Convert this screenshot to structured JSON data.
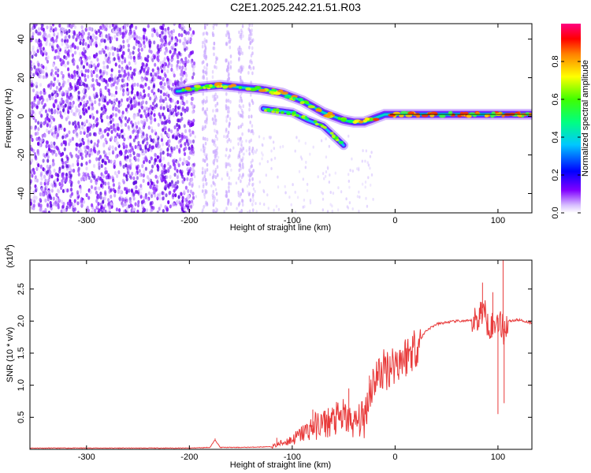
{
  "title": "C2E1.2025.242.21.51.R03",
  "chart_data": [
    {
      "type": "heatmap",
      "xlabel": "Height of straight line (km)",
      "ylabel": "Frequency (Hz)",
      "xlim": [
        -355,
        133
      ],
      "ylim": [
        -50,
        48
      ],
      "xticks": [
        -300,
        -200,
        -100,
        0,
        100
      ],
      "yticks": [
        -40,
        -20,
        0,
        20,
        40
      ],
      "colorbar": {
        "label": "Normalized spectral amplitude",
        "range": [
          0.0,
          1.0
        ],
        "ticks": [
          0.0,
          0.2,
          0.4,
          0.6,
          0.8
        ],
        "colormap": [
          "#ffffff",
          "#8000ff",
          "#0000ff",
          "#00ffff",
          "#00ff00",
          "#ffff00",
          "#ff8000",
          "#ff0000",
          "#ff00ff"
        ]
      },
      "ridge": {
        "x": [
          -210,
          -190,
          -170,
          -150,
          -130,
          -120,
          -110,
          -100,
          -90,
          -80,
          -70,
          -60,
          -50,
          -40,
          -30,
          -20,
          -10,
          0,
          20,
          40,
          60,
          80,
          100,
          120,
          133
        ],
        "y": [
          13,
          15,
          16,
          15,
          14,
          13,
          12,
          10,
          8,
          5,
          2,
          0,
          -2,
          -3,
          -3,
          -1,
          1,
          1,
          1,
          1,
          1,
          1,
          1,
          1,
          1
        ]
      },
      "lower_branch": {
        "x": [
          -128,
          -115,
          -100,
          -85,
          -70,
          -60,
          -50
        ],
        "y": [
          4,
          3,
          2,
          -2,
          -5,
          -10,
          -15
        ]
      }
    },
    {
      "type": "line",
      "xlabel": "Height of straight line (km)",
      "ylabel": "SNR (10 * v/v)",
      "y_multiplier": "(x10",
      "y_multiplier_exp": "4",
      "y_multiplier_close": ")",
      "xlim": [
        -355,
        133
      ],
      "ylim": [
        0,
        2.95
      ],
      "xticks": [
        -300,
        -200,
        -100,
        0,
        100
      ],
      "yticks": [
        0.5,
        1.0,
        1.5,
        2.0,
        2.5
      ],
      "ytick_labels": [
        "0.5",
        "1.0",
        "1.5",
        "2.0",
        "2.5"
      ],
      "series": [
        {
          "color": "#e83a3a",
          "x": [
            -355,
            -300,
            -250,
            -200,
            -180,
            -175,
            -170,
            -150,
            -120,
            -110,
            -100,
            -90,
            -80,
            -70,
            -60,
            -50,
            -40,
            -30,
            -25,
            -20,
            -10,
            0,
            10,
            20,
            30,
            40,
            50,
            60,
            70,
            80,
            85,
            90,
            95,
            100,
            105,
            110,
            120,
            133
          ],
          "y": [
            0.02,
            0.02,
            0.02,
            0.02,
            0.03,
            0.15,
            0.03,
            0.03,
            0.04,
            0.1,
            0.15,
            0.25,
            0.35,
            0.4,
            0.45,
            0.5,
            0.4,
            0.5,
            0.9,
            1.1,
            1.25,
            1.35,
            1.45,
            1.6,
            1.85,
            1.95,
            1.98,
            2.0,
            2.0,
            2.02,
            2.2,
            2.0,
            1.9,
            2.05,
            1.85,
            2.0,
            2.02,
            1.97
          ]
        }
      ],
      "spikes": [
        {
          "x": -175,
          "y": 0.17
        },
        {
          "x": -115,
          "y": 0.18
        },
        {
          "x": -80,
          "y": 0.62
        },
        {
          "x": -45,
          "y": 0.95
        },
        {
          "x": -25,
          "y": 1.15
        },
        {
          "x": -10,
          "y": 1.42
        },
        {
          "x": 5,
          "y": 1.55
        },
        {
          "x": 85,
          "y": 2.6
        },
        {
          "x": 95,
          "y": 2.45
        },
        {
          "x": 100,
          "y": 0.55
        },
        {
          "x": 105,
          "y": 2.95
        },
        {
          "x": 106,
          "y": 0.72
        }
      ]
    }
  ]
}
